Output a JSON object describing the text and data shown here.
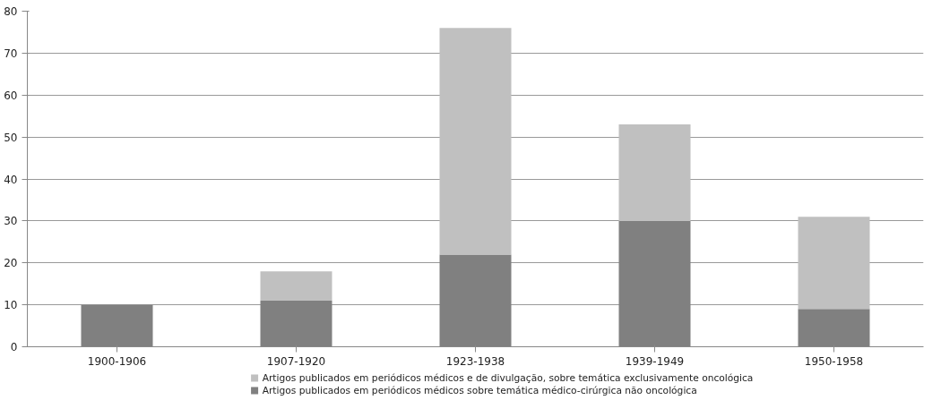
{
  "chart_data": {
    "type": "bar",
    "stacked": true,
    "categories": [
      "1900-1906",
      "1907-1920",
      "1923-1938",
      "1939-1949",
      "1950-1958"
    ],
    "series": [
      {
        "name": "Artigos publicados em periódicos médicos sobre temática médico-cirúrgica não oncológica",
        "color": "#808080",
        "values": [
          10,
          11,
          22,
          30,
          9
        ]
      },
      {
        "name": "Artigos publicados em periódicos médicos e de divulgação, sobre temática exclusivamente oncológica",
        "color": "#c0c0c0",
        "values": [
          0,
          7,
          54,
          23,
          22
        ]
      }
    ],
    "ylim": [
      0,
      80
    ],
    "yticks": [
      0,
      10,
      20,
      30,
      40,
      50,
      60,
      70,
      80
    ],
    "grid": "y",
    "legend": "bottom"
  }
}
